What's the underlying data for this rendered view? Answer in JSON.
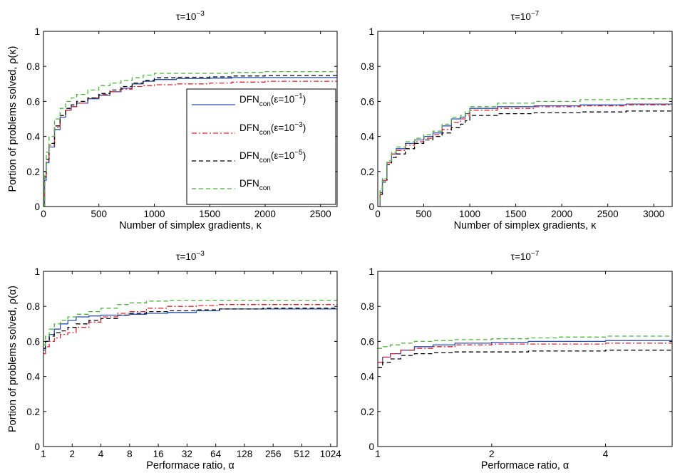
{
  "figure": {
    "legend_entries": [
      {
        "base": "DFN",
        "sub": "con",
        "tail": "(ε=10",
        "exp": "−1",
        "end": ")"
      },
      {
        "base": "DFN",
        "sub": "con",
        "tail": "(ε=10",
        "exp": "−3",
        "end": ")"
      },
      {
        "base": "DFN",
        "sub": "con",
        "tail": "(ε=10",
        "exp": "−5",
        "end": ")"
      },
      {
        "base": "DFN",
        "sub": "con",
        "tail": "",
        "exp": "",
        "end": ""
      }
    ],
    "legend_placement": "center-right of top-left panel"
  },
  "chart_data": [
    {
      "type": "line",
      "step": true,
      "title": {
        "base": "τ=10",
        "exp": "−3"
      },
      "xlabel": "Number of simplex gradients, κ",
      "ylabel": "Portion of problems solved, ρ(κ)",
      "xscale": "linear",
      "xlim": [
        0,
        2650
      ],
      "ylim": [
        0,
        1
      ],
      "xticks": [
        0,
        500,
        1000,
        1500,
        2000,
        2500
      ],
      "xticklabels": [
        "0",
        "500",
        "1000",
        "1500",
        "2000",
        "2500"
      ],
      "yticks": [
        0,
        0.2,
        0.4,
        0.6,
        0.8,
        1
      ],
      "yticklabels": [
        "0",
        "0.2",
        "0.4",
        "0.6",
        "0.8",
        "1"
      ],
      "grid": false,
      "series": [
        {
          "color": "#2b50b5",
          "dash": "solid",
          "x": [
            0,
            10,
            25,
            50,
            100,
            150,
            200,
            250,
            300,
            400,
            500,
            600,
            700,
            800,
            900,
            1000,
            1200,
            1500,
            1700,
            2000,
            2650
          ],
          "y": [
            0,
            0.15,
            0.25,
            0.34,
            0.44,
            0.51,
            0.55,
            0.57,
            0.59,
            0.615,
            0.635,
            0.655,
            0.675,
            0.7,
            0.715,
            0.725,
            0.73,
            0.733,
            0.736,
            0.736,
            0.736
          ]
        },
        {
          "color": "#e0242a",
          "dash": "dashdot",
          "x": [
            0,
            10,
            25,
            50,
            100,
            150,
            200,
            250,
            300,
            400,
            500,
            600,
            700,
            800,
            900,
            1000,
            1200,
            1500,
            1700,
            2000,
            2650
          ],
          "y": [
            0,
            0.16,
            0.26,
            0.35,
            0.45,
            0.52,
            0.55,
            0.57,
            0.59,
            0.62,
            0.64,
            0.655,
            0.67,
            0.685,
            0.69,
            0.695,
            0.7,
            0.705,
            0.71,
            0.715,
            0.715
          ]
        },
        {
          "color": "#000000",
          "dash": "dashed",
          "x": [
            0,
            10,
            25,
            50,
            100,
            150,
            200,
            250,
            300,
            400,
            500,
            600,
            700,
            800,
            900,
            1000,
            1200,
            1500,
            1700,
            2000,
            2650
          ],
          "y": [
            0,
            0.17,
            0.27,
            0.36,
            0.46,
            0.52,
            0.56,
            0.58,
            0.6,
            0.62,
            0.645,
            0.665,
            0.685,
            0.705,
            0.72,
            0.735,
            0.738,
            0.74,
            0.745,
            0.748,
            0.75
          ]
        },
        {
          "color": "#4bb33a",
          "dash": "dashed",
          "x": [
            0,
            10,
            25,
            50,
            100,
            150,
            200,
            250,
            300,
            400,
            500,
            600,
            700,
            800,
            900,
            1000,
            1200,
            1500,
            1700,
            2000,
            2650
          ],
          "y": [
            0,
            0.2,
            0.31,
            0.4,
            0.5,
            0.56,
            0.6,
            0.62,
            0.64,
            0.665,
            0.69,
            0.705,
            0.72,
            0.735,
            0.75,
            0.76,
            0.76,
            0.76,
            0.765,
            0.77,
            0.772
          ]
        }
      ]
    },
    {
      "type": "line",
      "step": true,
      "title": {
        "base": "τ=10",
        "exp": "−7"
      },
      "xlabel": "Number of simplex gradients, κ",
      "ylabel": "",
      "xscale": "linear",
      "xlim": [
        0,
        3200
      ],
      "ylim": [
        0,
        1
      ],
      "xticks": [
        0,
        500,
        1000,
        1500,
        2000,
        2500,
        3000
      ],
      "xticklabels": [
        "0",
        "500",
        "1000",
        "1500",
        "2000",
        "2500",
        "3000"
      ],
      "yticks": [
        0,
        0.2,
        0.4,
        0.6,
        0.8,
        1
      ],
      "yticklabels": [
        "0",
        "0.2",
        "0.4",
        "0.6",
        "0.8",
        "1"
      ],
      "grid": false,
      "series": [
        {
          "color": "#2b50b5",
          "dash": "solid",
          "x": [
            0,
            25,
            50,
            100,
            150,
            200,
            300,
            400,
            500,
            600,
            700,
            800,
            900,
            950,
            1000,
            1300,
            1700,
            2200,
            2700,
            3200
          ],
          "y": [
            0,
            0.08,
            0.15,
            0.25,
            0.3,
            0.33,
            0.36,
            0.38,
            0.4,
            0.42,
            0.46,
            0.5,
            0.51,
            0.53,
            0.56,
            0.57,
            0.575,
            0.58,
            0.585,
            0.59
          ]
        },
        {
          "color": "#e0242a",
          "dash": "dashdot",
          "x": [
            0,
            25,
            50,
            100,
            150,
            200,
            300,
            400,
            500,
            600,
            700,
            800,
            900,
            950,
            1000,
            1300,
            1700,
            2200,
            2700,
            3200
          ],
          "y": [
            0,
            0.08,
            0.15,
            0.25,
            0.3,
            0.32,
            0.35,
            0.37,
            0.39,
            0.41,
            0.44,
            0.48,
            0.5,
            0.52,
            0.55,
            0.56,
            0.57,
            0.575,
            0.58,
            0.585
          ]
        },
        {
          "color": "#000000",
          "dash": "dashed",
          "x": [
            0,
            25,
            50,
            100,
            150,
            200,
            300,
            400,
            500,
            600,
            700,
            800,
            900,
            950,
            1000,
            1300,
            1700,
            2200,
            2700,
            3200
          ],
          "y": [
            0,
            0.07,
            0.14,
            0.24,
            0.28,
            0.3,
            0.33,
            0.36,
            0.38,
            0.4,
            0.42,
            0.45,
            0.47,
            0.49,
            0.52,
            0.53,
            0.535,
            0.54,
            0.545,
            0.545
          ]
        },
        {
          "color": "#4bb33a",
          "dash": "dashed",
          "x": [
            0,
            25,
            50,
            100,
            150,
            200,
            300,
            400,
            500,
            600,
            700,
            800,
            900,
            950,
            1000,
            1300,
            1700,
            2200,
            2700,
            3200
          ],
          "y": [
            0,
            0.09,
            0.16,
            0.26,
            0.31,
            0.34,
            0.37,
            0.39,
            0.41,
            0.43,
            0.47,
            0.51,
            0.52,
            0.54,
            0.57,
            0.59,
            0.6,
            0.61,
            0.615,
            0.62
          ]
        }
      ]
    },
    {
      "type": "line",
      "step": true,
      "title": {
        "base": "τ=10",
        "exp": "−3"
      },
      "xlabel": "Performace ratio, α",
      "ylabel": "Portion of problems solved, ρ(α)",
      "xscale": "log2",
      "xlim": [
        1,
        1200
      ],
      "ylim": [
        0,
        1
      ],
      "xticks": [
        1,
        2,
        4,
        8,
        16,
        32,
        64,
        128,
        256,
        512,
        1024
      ],
      "xticklabels": [
        "1",
        "2",
        "4",
        "8",
        "16",
        "32",
        "64",
        "128",
        "256",
        "512",
        "1024"
      ],
      "yticks": [
        0,
        0.2,
        0.4,
        0.6,
        0.8,
        1
      ],
      "yticklabels": [
        "0",
        "0.2",
        "0.4",
        "0.6",
        "0.8",
        "1"
      ],
      "grid": false,
      "series": [
        {
          "color": "#2b50b5",
          "dash": "solid",
          "x": [
            1,
            1.05,
            1.15,
            1.3,
            1.5,
            1.8,
            2.2,
            3,
            4,
            6,
            8,
            12,
            20,
            40,
            70,
            200,
            1200
          ],
          "y": [
            0.55,
            0.6,
            0.64,
            0.67,
            0.7,
            0.72,
            0.74,
            0.745,
            0.75,
            0.75,
            0.755,
            0.76,
            0.765,
            0.775,
            0.785,
            0.785,
            0.785
          ]
        },
        {
          "color": "#e0242a",
          "dash": "dashdot",
          "x": [
            1,
            1.05,
            1.15,
            1.3,
            1.5,
            1.8,
            2.2,
            3,
            4,
            6,
            8,
            12,
            20,
            40,
            70,
            200,
            1200
          ],
          "y": [
            0.53,
            0.57,
            0.6,
            0.62,
            0.64,
            0.65,
            0.68,
            0.71,
            0.74,
            0.76,
            0.77,
            0.79,
            0.8,
            0.805,
            0.81,
            0.81,
            0.81
          ]
        },
        {
          "color": "#000000",
          "dash": "dashed",
          "x": [
            1,
            1.05,
            1.15,
            1.3,
            1.5,
            1.8,
            2.2,
            3,
            4,
            6,
            8,
            12,
            20,
            40,
            70,
            200,
            1200
          ],
          "y": [
            0.56,
            0.6,
            0.63,
            0.65,
            0.66,
            0.68,
            0.7,
            0.72,
            0.73,
            0.75,
            0.76,
            0.77,
            0.775,
            0.78,
            0.785,
            0.79,
            0.795
          ]
        },
        {
          "color": "#4bb33a",
          "dash": "dashed",
          "x": [
            1,
            1.05,
            1.15,
            1.3,
            1.5,
            1.8,
            2.2,
            3,
            4,
            6,
            8,
            12,
            20,
            40,
            70,
            200,
            1200
          ],
          "y": [
            0.58,
            0.63,
            0.67,
            0.7,
            0.72,
            0.74,
            0.755,
            0.77,
            0.79,
            0.81,
            0.82,
            0.83,
            0.835,
            0.835,
            0.835,
            0.835,
            0.835
          ]
        }
      ]
    },
    {
      "type": "line",
      "step": true,
      "title": {
        "base": "τ=10",
        "exp": "−7"
      },
      "xlabel": "Performace ratio, α",
      "ylabel": "",
      "xscale": "log2",
      "xlim": [
        1,
        6
      ],
      "ylim": [
        0,
        1
      ],
      "xticks": [
        1,
        2,
        4
      ],
      "xticklabels": [
        "1",
        "2",
        "4"
      ],
      "yticks": [
        0,
        0.2,
        0.4,
        0.6,
        0.8,
        1
      ],
      "yticklabels": [
        "0",
        "0.2",
        "0.4",
        "0.6",
        "0.8",
        "1"
      ],
      "grid": false,
      "series": [
        {
          "color": "#2b50b5",
          "dash": "solid",
          "x": [
            1,
            1.03,
            1.08,
            1.15,
            1.25,
            1.4,
            1.6,
            2,
            2.5,
            3,
            4,
            5,
            6
          ],
          "y": [
            0.48,
            0.51,
            0.53,
            0.55,
            0.57,
            0.58,
            0.59,
            0.595,
            0.6,
            0.6,
            0.605,
            0.605,
            0.61
          ]
        },
        {
          "color": "#e0242a",
          "dash": "dashdot",
          "x": [
            1,
            1.03,
            1.08,
            1.15,
            1.25,
            1.4,
            1.6,
            2,
            2.5,
            3,
            4,
            5,
            6
          ],
          "y": [
            0.48,
            0.51,
            0.53,
            0.55,
            0.56,
            0.57,
            0.58,
            0.585,
            0.585,
            0.585,
            0.59,
            0.59,
            0.59
          ]
        },
        {
          "color": "#000000",
          "dash": "dashed",
          "x": [
            1,
            1.03,
            1.08,
            1.15,
            1.25,
            1.4,
            1.6,
            2,
            2.5,
            3,
            4,
            5,
            6
          ],
          "y": [
            0.45,
            0.48,
            0.5,
            0.52,
            0.53,
            0.535,
            0.54,
            0.54,
            0.545,
            0.545,
            0.55,
            0.55,
            0.555
          ]
        },
        {
          "color": "#4bb33a",
          "dash": "dashed",
          "x": [
            1,
            1.03,
            1.08,
            1.15,
            1.25,
            1.4,
            1.6,
            2,
            2.5,
            3,
            4,
            5,
            6
          ],
          "y": [
            0.56,
            0.57,
            0.58,
            0.59,
            0.6,
            0.605,
            0.61,
            0.615,
            0.62,
            0.625,
            0.63,
            0.63,
            0.63
          ]
        }
      ]
    }
  ]
}
